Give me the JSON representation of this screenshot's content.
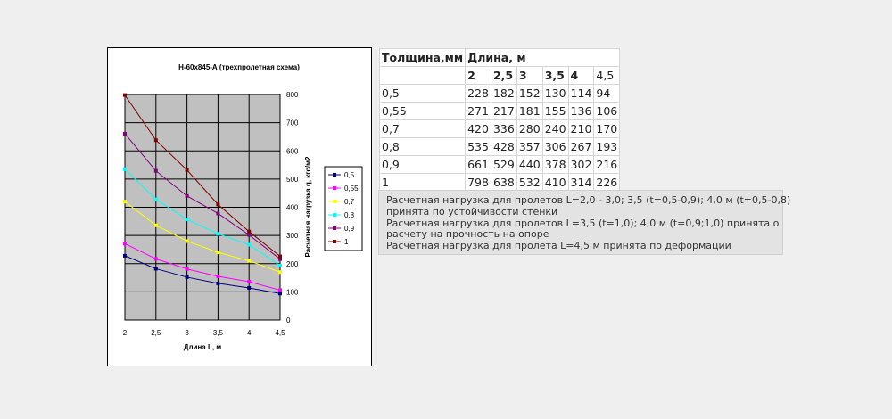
{
  "chart_data": {
    "type": "line",
    "title": "Н-60х845-А (трехпролетная схема)",
    "xlabel": "Длина L, м",
    "ylabel": "Расчетная нагрузка q, кгс/м2",
    "x": [
      2,
      2.5,
      3,
      3.5,
      4,
      4.5
    ],
    "x_tick_labels": [
      "2",
      "2,5",
      "3",
      "3,5",
      "4",
      "4,5"
    ],
    "ylim": [
      0,
      800
    ],
    "y_ticks": [
      0,
      100,
      200,
      300,
      400,
      500,
      600,
      700,
      800
    ],
    "y_axis_position": "right",
    "grid": true,
    "legend_position": "right",
    "series": [
      {
        "name": "0,5",
        "values": [
          228,
          182,
          152,
          130,
          114,
          94
        ],
        "color": "#000080"
      },
      {
        "name": "0,55",
        "values": [
          271,
          217,
          181,
          155,
          136,
          106
        ],
        "color": "#ff00ff"
      },
      {
        "name": "0,7",
        "values": [
          420,
          336,
          280,
          240,
          210,
          170
        ],
        "color": "#ffff00"
      },
      {
        "name": "0,8",
        "values": [
          535,
          428,
          357,
          306,
          267,
          193
        ],
        "color": "#00ffff"
      },
      {
        "name": "0,9",
        "values": [
          661,
          529,
          440,
          378,
          302,
          216
        ],
        "color": "#800080"
      },
      {
        "name": "1",
        "values": [
          798,
          638,
          532,
          410,
          314,
          226
        ],
        "color": "#800000"
      }
    ]
  },
  "table": {
    "header1": [
      "Толщина,мм",
      "Длина, м"
    ],
    "header2": [
      "2",
      "2,5",
      "3",
      "3,5",
      "4",
      "4,5"
    ],
    "rows": [
      [
        "0,5",
        "228",
        "182",
        "152",
        "130",
        "114",
        "94"
      ],
      [
        "0,55",
        "271",
        "217",
        "181",
        "155",
        "136",
        "106"
      ],
      [
        "0,7",
        "420",
        "336",
        "280",
        "240",
        "210",
        "170"
      ],
      [
        "0,8",
        "535",
        "428",
        "357",
        "306",
        "267",
        "193"
      ],
      [
        "0,9",
        "661",
        "529",
        "440",
        "378",
        "302",
        "216"
      ],
      [
        "1",
        "798",
        "638",
        "532",
        "410",
        "314",
        "226"
      ]
    ]
  },
  "notes": {
    "line1": "Расчетная нагрузка для пролетов L=2,0 - 3,0; 3,5 (t=0,5-0,9); 4,0 м (t=0,5-0,8)",
    "line2": "принята по устойчивости стенки",
    "line3": "Расчетная нагрузка для пролетов L=3,5 (t=1,0); 4,0 м (t=0,9;1,0) принята о",
    "line4": "расчету на прочность на опоре",
    "line5": "Расчетная нагрузка для пролета L=4,5 м принята по деформации"
  }
}
